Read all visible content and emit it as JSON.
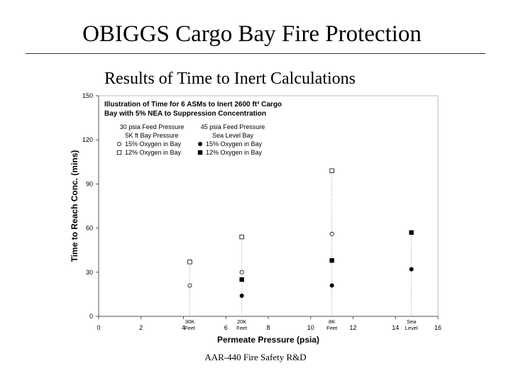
{
  "slide": {
    "title": "OBIGGS Cargo Bay Fire Protection",
    "subtitle": "Results of Time to Inert Calculations",
    "footer": "AAR-440 Fire Safety R&D"
  },
  "chart_data": {
    "type": "scatter",
    "title_lines": [
      "Illustration of Time for 6 ASMs to Inert 2600 ft³ Cargo",
      "Bay with 5% NEA to Suppression Concentration"
    ],
    "xlabel": "Permeate Pressure (psia)",
    "ylabel": "Time to Reach Conc. (mins)",
    "xlim": [
      0,
      16
    ],
    "ylim": [
      0,
      150
    ],
    "xticks": [
      0,
      2,
      4,
      6,
      8,
      10,
      12,
      14,
      16
    ],
    "yticks": [
      0,
      30,
      60,
      90,
      120,
      150
    ],
    "grid": false,
    "legend_position": "top-left",
    "legend_groups": [
      {
        "header_lines": [
          "30 psia Feed Pressure",
          "5K ft Bay Pressure"
        ]
      },
      {
        "header_lines": [
          "45 psia Feed Pressure",
          "Sea Level Bay"
        ]
      }
    ],
    "altitude_labels": [
      {
        "x": 4.3,
        "lines": [
          "30K",
          "Feet"
        ]
      },
      {
        "x": 6.75,
        "lines": [
          "20K",
          "Feet"
        ]
      },
      {
        "x": 11,
        "lines": [
          "8K",
          "Feet"
        ]
      },
      {
        "x": 14.75,
        "lines": [
          "Sea",
          "Level"
        ]
      }
    ],
    "series": [
      {
        "name": "15% Oxygen in Bay",
        "group": 0,
        "marker": "circle",
        "filled": false,
        "points": [
          {
            "x": 4.3,
            "y": 21
          },
          {
            "x": 6.75,
            "y": 30
          },
          {
            "x": 11,
            "y": 56
          }
        ]
      },
      {
        "name": "12% Oxygen in Bay",
        "group": 0,
        "marker": "square",
        "filled": false,
        "points": [
          {
            "x": 4.3,
            "y": 37
          },
          {
            "x": 6.75,
            "y": 54
          },
          {
            "x": 11,
            "y": 99
          }
        ]
      },
      {
        "name": "15% Oxygen in Bay",
        "group": 1,
        "marker": "circle",
        "filled": true,
        "points": [
          {
            "x": 6.75,
            "y": 14
          },
          {
            "x": 11,
            "y": 21
          },
          {
            "x": 14.75,
            "y": 32
          }
        ]
      },
      {
        "name": "12% Oxygen in Bay",
        "group": 1,
        "marker": "square",
        "filled": true,
        "points": [
          {
            "x": 6.75,
            "y": 25
          },
          {
            "x": 11,
            "y": 38
          },
          {
            "x": 14.75,
            "y": 57
          }
        ]
      }
    ]
  }
}
